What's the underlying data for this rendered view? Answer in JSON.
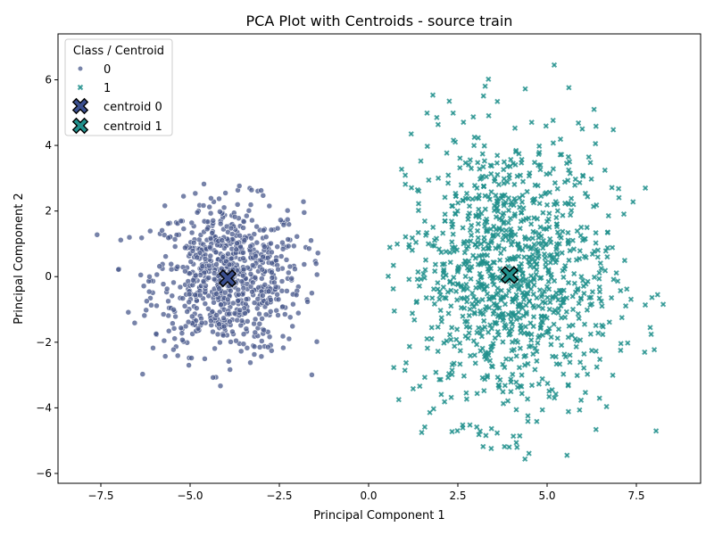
{
  "chart_data": {
    "type": "scatter",
    "title": "PCA Plot with Centroids - source train",
    "xlabel": "Principal Component 1",
    "ylabel": "Principal Component 2",
    "xlim": [
      -8.7,
      9.3
    ],
    "ylim": [
      -6.3,
      7.4
    ],
    "xticks": [
      -7.5,
      -5.0,
      -2.5,
      0.0,
      2.5,
      5.0,
      7.5
    ],
    "xtick_labels": [
      "−7.5",
      "−5.0",
      "−2.5",
      "0.0",
      "2.5",
      "5.0",
      "7.5"
    ],
    "yticks": [
      -6,
      -4,
      -2,
      0,
      2,
      4,
      6
    ],
    "ytick_labels": [
      "−6",
      "−4",
      "−2",
      "0",
      "2",
      "4",
      "6"
    ],
    "grid": false,
    "legend": {
      "title": "Class / Centroid",
      "placement": "top-left",
      "entries": [
        "0",
        "1",
        "centroid 0",
        "centroid 1"
      ]
    },
    "series": [
      {
        "name": "0",
        "marker": "circle",
        "color": "#4a5a8c",
        "count": 800,
        "center": [
          -3.95,
          -0.05
        ],
        "spread": [
          1.05,
          1.15
        ],
        "x_range": [
          -8.0,
          -1.4
        ],
        "y_range": [
          -3.45,
          3.4
        ]
      },
      {
        "name": "1",
        "marker": "x",
        "color": "#21908c",
        "count": 1100,
        "center": [
          3.95,
          0.05
        ],
        "spread": [
          1.45,
          2.2
        ],
        "x_range": [
          0.5,
          8.5
        ],
        "y_range": [
          -5.7,
          6.75
        ]
      }
    ],
    "centroids": [
      {
        "name": "centroid 0",
        "x": -3.95,
        "y": -0.05,
        "color": "#3b4f8f"
      },
      {
        "name": "centroid 1",
        "x": 3.95,
        "y": 0.05,
        "color": "#21908c"
      }
    ]
  }
}
